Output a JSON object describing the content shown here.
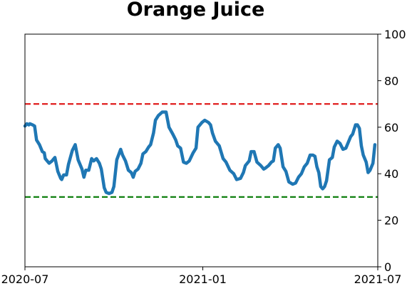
{
  "chart_data": {
    "type": "line",
    "title": "Orange Juice",
    "xlabel": "",
    "ylabel": "",
    "x_range": [
      "2020-07-01",
      "2021-07-01"
    ],
    "x_ticks": [
      {
        "date": "2020-07-01",
        "label": "2020-07"
      },
      {
        "date": "2021-01-01",
        "label": "2021-01"
      },
      {
        "date": "2021-07-01",
        "label": "2021-07"
      }
    ],
    "ylim": [
      0,
      100
    ],
    "y_ticks": [
      0,
      20,
      40,
      60,
      80,
      100
    ],
    "y_axis_side": "right",
    "grid": false,
    "reference_lines": [
      {
        "value": 70,
        "color": "#e02020",
        "style": "dashed"
      },
      {
        "value": 30,
        "color": "#108010",
        "style": "dashed"
      }
    ],
    "series": [
      {
        "color": "#1f77b4",
        "points": [
          [
            "2020-07-01",
            60.5
          ],
          [
            "2020-07-03",
            61.5
          ],
          [
            "2020-07-05",
            61.0
          ],
          [
            "2020-07-06",
            61.5
          ],
          [
            "2020-07-09",
            61.0
          ],
          [
            "2020-07-11",
            60.5
          ],
          [
            "2020-07-13",
            54.5
          ],
          [
            "2020-07-16",
            52.5
          ],
          [
            "2020-07-19",
            49.5
          ],
          [
            "2020-07-21",
            49.0
          ],
          [
            "2020-07-22",
            46.5
          ],
          [
            "2020-07-26",
            44.5
          ],
          [
            "2020-07-29",
            45.5
          ],
          [
            "2020-08-01",
            47.0
          ],
          [
            "2020-08-02",
            45.0
          ],
          [
            "2020-08-04",
            41.0
          ],
          [
            "2020-08-07",
            38.0
          ],
          [
            "2020-08-08",
            37.5
          ],
          [
            "2020-08-10",
            39.5
          ],
          [
            "2020-08-13",
            39.5
          ],
          [
            "2020-08-15",
            44.0
          ],
          [
            "2020-08-19",
            50.0
          ],
          [
            "2020-08-22",
            52.5
          ],
          [
            "2020-08-25",
            46.0
          ],
          [
            "2020-08-29",
            42.0
          ],
          [
            "2020-08-31",
            38.5
          ],
          [
            "2020-09-02",
            41.5
          ],
          [
            "2020-09-05",
            41.5
          ],
          [
            "2020-09-08",
            46.5
          ],
          [
            "2020-09-10",
            45.5
          ],
          [
            "2020-09-13",
            46.5
          ],
          [
            "2020-09-16",
            44.5
          ],
          [
            "2020-09-18",
            42.0
          ],
          [
            "2020-09-21",
            34.0
          ],
          [
            "2020-09-23",
            32.0
          ],
          [
            "2020-09-26",
            31.5
          ],
          [
            "2020-09-29",
            32.0
          ],
          [
            "2020-10-01",
            34.5
          ],
          [
            "2020-10-04",
            46.0
          ],
          [
            "2020-10-08",
            50.5
          ],
          [
            "2020-10-10",
            48.0
          ],
          [
            "2020-10-13",
            45.5
          ],
          [
            "2020-10-16",
            41.5
          ],
          [
            "2020-10-19",
            40.5
          ],
          [
            "2020-10-21",
            38.5
          ],
          [
            "2020-10-23",
            41.0
          ],
          [
            "2020-10-26",
            42.0
          ],
          [
            "2020-10-29",
            44.5
          ],
          [
            "2020-10-31",
            48.5
          ],
          [
            "2020-11-03",
            49.5
          ],
          [
            "2020-11-06",
            51.5
          ],
          [
            "2020-11-08",
            52.5
          ],
          [
            "2020-11-11",
            57.5
          ],
          [
            "2020-11-13",
            63.0
          ],
          [
            "2020-11-16",
            65.0
          ],
          [
            "2020-11-20",
            66.5
          ],
          [
            "2020-11-24",
            66.5
          ],
          [
            "2020-11-27",
            60.0
          ],
          [
            "2020-12-01",
            57.0
          ],
          [
            "2020-12-04",
            54.5
          ],
          [
            "2020-12-06",
            52.0
          ],
          [
            "2020-12-09",
            51.0
          ],
          [
            "2020-12-12",
            45.0
          ],
          [
            "2020-12-15",
            44.5
          ],
          [
            "2020-12-18",
            45.5
          ],
          [
            "2020-12-22",
            49.0
          ],
          [
            "2020-12-25",
            51.0
          ],
          [
            "2020-12-27",
            60.0
          ],
          [
            "2020-12-31",
            62.0
          ],
          [
            "2021-01-03",
            63.0
          ],
          [
            "2021-01-07",
            62.0
          ],
          [
            "2021-01-09",
            61.0
          ],
          [
            "2021-01-11",
            57.5
          ],
          [
            "2021-01-14",
            54.0
          ],
          [
            "2021-01-18",
            52.0
          ],
          [
            "2021-01-22",
            46.5
          ],
          [
            "2021-01-25",
            45.0
          ],
          [
            "2021-01-29",
            41.5
          ],
          [
            "2021-02-02",
            40.0
          ],
          [
            "2021-02-05",
            37.5
          ],
          [
            "2021-02-09",
            38.0
          ],
          [
            "2021-02-12",
            40.5
          ],
          [
            "2021-02-14",
            43.5
          ],
          [
            "2021-02-18",
            45.5
          ],
          [
            "2021-02-20",
            49.5
          ],
          [
            "2021-02-23",
            49.5
          ],
          [
            "2021-02-26",
            45.0
          ],
          [
            "2021-03-02",
            43.5
          ],
          [
            "2021-03-05",
            42.0
          ],
          [
            "2021-03-07",
            42.5
          ],
          [
            "2021-03-10",
            43.5
          ],
          [
            "2021-03-13",
            45.0
          ],
          [
            "2021-03-15",
            45.5
          ],
          [
            "2021-03-17",
            51.0
          ],
          [
            "2021-03-20",
            52.5
          ],
          [
            "2021-03-22",
            51.0
          ],
          [
            "2021-03-25",
            43.0
          ],
          [
            "2021-03-28",
            41.0
          ],
          [
            "2021-03-31",
            36.5
          ],
          [
            "2021-04-04",
            35.5
          ],
          [
            "2021-04-07",
            36.0
          ],
          [
            "2021-04-10",
            38.5
          ],
          [
            "2021-04-13",
            40.0
          ],
          [
            "2021-04-16",
            43.0
          ],
          [
            "2021-04-19",
            44.5
          ],
          [
            "2021-04-22",
            48.0
          ],
          [
            "2021-04-25",
            48.0
          ],
          [
            "2021-04-27",
            47.5
          ],
          [
            "2021-04-29",
            43.0
          ],
          [
            "2021-05-01",
            40.5
          ],
          [
            "2021-05-03",
            34.5
          ],
          [
            "2021-05-05",
            33.5
          ],
          [
            "2021-05-07",
            34.5
          ],
          [
            "2021-05-09",
            37.0
          ],
          [
            "2021-05-12",
            46.0
          ],
          [
            "2021-05-15",
            47.0
          ],
          [
            "2021-05-17",
            51.5
          ],
          [
            "2021-05-20",
            54.0
          ],
          [
            "2021-05-23",
            53.0
          ],
          [
            "2021-05-26",
            50.5
          ],
          [
            "2021-05-29",
            51.0
          ],
          [
            "2021-05-31",
            53.0
          ],
          [
            "2021-06-03",
            56.0
          ],
          [
            "2021-06-05",
            57.0
          ],
          [
            "2021-06-08",
            61.0
          ],
          [
            "2021-06-10",
            61.0
          ],
          [
            "2021-06-12",
            59.5
          ],
          [
            "2021-06-14",
            52.0
          ],
          [
            "2021-06-16",
            48.0
          ],
          [
            "2021-06-19",
            45.0
          ],
          [
            "2021-06-21",
            40.5
          ],
          [
            "2021-06-23",
            41.5
          ],
          [
            "2021-06-26",
            44.5
          ],
          [
            "2021-06-28",
            52.5
          ]
        ]
      }
    ]
  }
}
